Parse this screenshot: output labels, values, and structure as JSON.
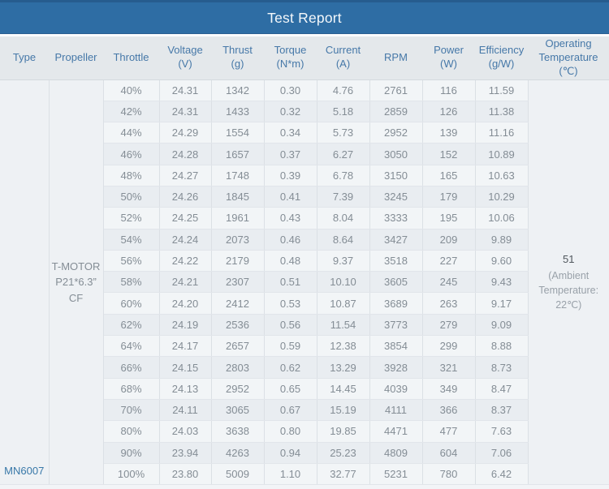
{
  "title": "Test Report",
  "accent_colors": {
    "title_bar_blue": "#2e6da4",
    "header_text_blue": "#4678a8",
    "type_label_blue": "#3878a8",
    "row_stripe_light": "#f2f5f7",
    "row_stripe_dark": "#e9edf1"
  },
  "chart_data": {
    "type": "table",
    "title": "Test Report",
    "columns": [
      {
        "key": "type",
        "label": "Type"
      },
      {
        "key": "propeller",
        "label": "Propeller"
      },
      {
        "key": "throttle",
        "label": "Throttle"
      },
      {
        "key": "voltage",
        "label": "Voltage\n(V)"
      },
      {
        "key": "thrust",
        "label": "Thrust\n(g)"
      },
      {
        "key": "torque",
        "label": "Torque\n(N*m)"
      },
      {
        "key": "current",
        "label": "Current\n(A)"
      },
      {
        "key": "rpm",
        "label": "RPM"
      },
      {
        "key": "power",
        "label": "Power\n(W)"
      },
      {
        "key": "efficiency",
        "label": "Efficiency\n(g/W)"
      },
      {
        "key": "operating-temperature",
        "label": "Operating\nTemperature\n(℃)"
      }
    ],
    "shared": {
      "type": "MN6007",
      "propeller": "T-MOTOR\nP21*6.3”\nCF",
      "operating_temperature_value": "51",
      "operating_temperature_note": "(Ambient\nTemperature:\n22℃)"
    },
    "rows": [
      {
        "throttle": "40%",
        "voltage": "24.31",
        "thrust": "1342",
        "torque": "0.30",
        "current": "4.76",
        "rpm": "2761",
        "power": "116",
        "efficiency": "11.59"
      },
      {
        "throttle": "42%",
        "voltage": "24.31",
        "thrust": "1433",
        "torque": "0.32",
        "current": "5.18",
        "rpm": "2859",
        "power": "126",
        "efficiency": "11.38"
      },
      {
        "throttle": "44%",
        "voltage": "24.29",
        "thrust": "1554",
        "torque": "0.34",
        "current": "5.73",
        "rpm": "2952",
        "power": "139",
        "efficiency": "11.16"
      },
      {
        "throttle": "46%",
        "voltage": "24.28",
        "thrust": "1657",
        "torque": "0.37",
        "current": "6.27",
        "rpm": "3050",
        "power": "152",
        "efficiency": "10.89"
      },
      {
        "throttle": "48%",
        "voltage": "24.27",
        "thrust": "1748",
        "torque": "0.39",
        "current": "6.78",
        "rpm": "3150",
        "power": "165",
        "efficiency": "10.63"
      },
      {
        "throttle": "50%",
        "voltage": "24.26",
        "thrust": "1845",
        "torque": "0.41",
        "current": "7.39",
        "rpm": "3245",
        "power": "179",
        "efficiency": "10.29"
      },
      {
        "throttle": "52%",
        "voltage": "24.25",
        "thrust": "1961",
        "torque": "0.43",
        "current": "8.04",
        "rpm": "3333",
        "power": "195",
        "efficiency": "10.06"
      },
      {
        "throttle": "54%",
        "voltage": "24.24",
        "thrust": "2073",
        "torque": "0.46",
        "current": "8.64",
        "rpm": "3427",
        "power": "209",
        "efficiency": "9.89"
      },
      {
        "throttle": "56%",
        "voltage": "24.22",
        "thrust": "2179",
        "torque": "0.48",
        "current": "9.37",
        "rpm": "3518",
        "power": "227",
        "efficiency": "9.60"
      },
      {
        "throttle": "58%",
        "voltage": "24.21",
        "thrust": "2307",
        "torque": "0.51",
        "current": "10.10",
        "rpm": "3605",
        "power": "245",
        "efficiency": "9.43"
      },
      {
        "throttle": "60%",
        "voltage": "24.20",
        "thrust": "2412",
        "torque": "0.53",
        "current": "10.87",
        "rpm": "3689",
        "power": "263",
        "efficiency": "9.17"
      },
      {
        "throttle": "62%",
        "voltage": "24.19",
        "thrust": "2536",
        "torque": "0.56",
        "current": "11.54",
        "rpm": "3773",
        "power": "279",
        "efficiency": "9.09"
      },
      {
        "throttle": "64%",
        "voltage": "24.17",
        "thrust": "2657",
        "torque": "0.59",
        "current": "12.38",
        "rpm": "3854",
        "power": "299",
        "efficiency": "8.88"
      },
      {
        "throttle": "66%",
        "voltage": "24.15",
        "thrust": "2803",
        "torque": "0.62",
        "current": "13.29",
        "rpm": "3928",
        "power": "321",
        "efficiency": "8.73"
      },
      {
        "throttle": "68%",
        "voltage": "24.13",
        "thrust": "2952",
        "torque": "0.65",
        "current": "14.45",
        "rpm": "4039",
        "power": "349",
        "efficiency": "8.47"
      },
      {
        "throttle": "70%",
        "voltage": "24.11",
        "thrust": "3065",
        "torque": "0.67",
        "current": "15.19",
        "rpm": "4111",
        "power": "366",
        "efficiency": "8.37"
      },
      {
        "throttle": "80%",
        "voltage": "24.03",
        "thrust": "3638",
        "torque": "0.80",
        "current": "19.85",
        "rpm": "4471",
        "power": "477",
        "efficiency": "7.63"
      },
      {
        "throttle": "90%",
        "voltage": "23.94",
        "thrust": "4263",
        "torque": "0.94",
        "current": "25.23",
        "rpm": "4809",
        "power": "604",
        "efficiency": "7.06"
      },
      {
        "throttle": "100%",
        "voltage": "23.80",
        "thrust": "5009",
        "torque": "1.10",
        "current": "32.77",
        "rpm": "5231",
        "power": "780",
        "efficiency": "6.42"
      }
    ]
  }
}
